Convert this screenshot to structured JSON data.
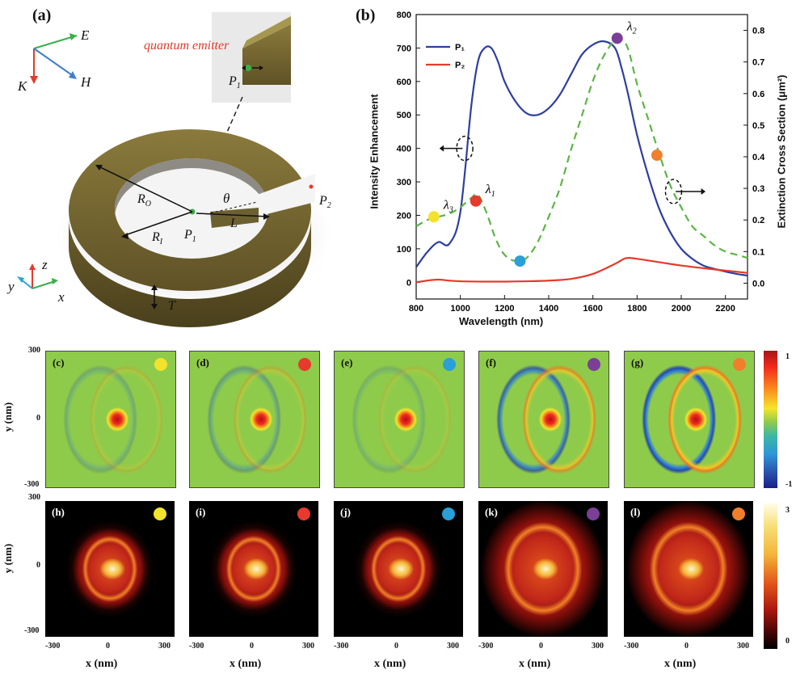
{
  "panel_a": {
    "label": "(a)",
    "axis_E": "E",
    "axis_K": "K",
    "axis_H": "H",
    "emitter_label": "quantum emitter",
    "inset_label": "P",
    "inset_sub": "1",
    "R_o": "R",
    "R_o_sub": "O",
    "R_i": "R",
    "R_i_sub": "I",
    "P1": "P",
    "P1_sub": "1",
    "P2": "P",
    "P2_sub": "2",
    "theta": "θ",
    "L": "L",
    "T": "T",
    "ax_z": "z",
    "ax_y": "y",
    "ax_x": "x"
  },
  "chart_data": {
    "type": "line",
    "panel_label": "(b)",
    "xlabel": "Wavelength (nm)",
    "ylabel_left": "Intensity Enhancement",
    "ylabel_right": "Extinction Cross Section (μm²)",
    "xlim": [
      800,
      2300
    ],
    "ylim_left": [
      -50,
      800
    ],
    "ylim_right": [
      -0.05,
      0.85
    ],
    "x_ticks": [
      "800",
      "1000",
      "1200",
      "1400",
      "1600",
      "1800",
      "2000",
      "2200"
    ],
    "y_left_ticks": [
      "0",
      "100",
      "200",
      "300",
      "400",
      "500",
      "600",
      "700",
      "800"
    ],
    "y_right_ticks": [
      "0.0",
      "0.1",
      "0.2",
      "0.3",
      "0.4",
      "0.5",
      "0.6",
      "0.7",
      "0.8"
    ],
    "legend": [
      "P₁",
      "P₂"
    ],
    "series": [
      {
        "name": "P₁",
        "axis": "left",
        "color": "#2e3f9e",
        "x": [
          800,
          850,
          900,
          950,
          1000,
          1050,
          1080,
          1110,
          1140,
          1170,
          1200,
          1250,
          1300,
          1350,
          1400,
          1450,
          1500,
          1550,
          1600,
          1650,
          1700,
          1730,
          1760,
          1800,
          1850,
          1900,
          1950,
          2000,
          2050,
          2100,
          2150,
          2200,
          2250,
          2300
        ],
        "y": [
          45,
          90,
          120,
          115,
          210,
          530,
          660,
          700,
          700,
          660,
          600,
          540,
          505,
          500,
          520,
          560,
          620,
          680,
          710,
          720,
          700,
          640,
          560,
          440,
          320,
          220,
          150,
          100,
          70,
          50,
          40,
          32,
          25,
          20
        ]
      },
      {
        "name": "P₂",
        "axis": "left",
        "color": "#e53a2c",
        "x": [
          800,
          850,
          900,
          950,
          1000,
          1100,
          1200,
          1300,
          1400,
          1500,
          1600,
          1700,
          1750,
          1800,
          1900,
          2000,
          2100,
          2200,
          2300
        ],
        "y": [
          0,
          5,
          8,
          5,
          3,
          2,
          2,
          3,
          5,
          10,
          25,
          55,
          72,
          70,
          60,
          50,
          42,
          35,
          28
        ]
      },
      {
        "name": "Extinction",
        "axis": "right",
        "color": "#5cb545",
        "dashed": true,
        "x": [
          800,
          850,
          900,
          950,
          1000,
          1050,
          1080,
          1120,
          1160,
          1200,
          1250,
          1300,
          1350,
          1400,
          1450,
          1500,
          1550,
          1600,
          1650,
          1700,
          1730,
          1760,
          1800,
          1850,
          1900,
          1950,
          2000,
          2050,
          2100,
          2150,
          2200,
          2250,
          2300
        ],
        "y": [
          0.18,
          0.2,
          0.21,
          0.22,
          0.24,
          0.27,
          0.28,
          0.22,
          0.14,
          0.09,
          0.07,
          0.08,
          0.13,
          0.21,
          0.3,
          0.42,
          0.53,
          0.64,
          0.72,
          0.77,
          0.77,
          0.74,
          0.63,
          0.52,
          0.41,
          0.31,
          0.24,
          0.18,
          0.15,
          0.12,
          0.1,
          0.09,
          0.08
        ]
      }
    ],
    "markers": [
      {
        "label": "λ",
        "sub": "3",
        "x": 880,
        "y_right": 0.21,
        "color": "#f2e22c"
      },
      {
        "label": "λ",
        "sub": "1",
        "x": 1070,
        "y_right": 0.26,
        "color": "#e53a2c"
      },
      {
        "label": "",
        "sub": "",
        "x": 1270,
        "y_right": 0.07,
        "color": "#2a9fd8"
      },
      {
        "label": "λ",
        "sub": "2",
        "x": 1710,
        "y_right": 0.775,
        "color": "#7b3f98"
      },
      {
        "label": "",
        "sub": "",
        "x": 1890,
        "y_right": 0.405,
        "color": "#f07f2c"
      }
    ]
  },
  "maps": {
    "axis_top_tick": "300",
    "axis_mid_tick": "0",
    "axis_bot_tick": "-300",
    "y_label": "y (nm)",
    "x_label": "x (nm)",
    "x_ticks": [
      "-300",
      "0",
      "300"
    ],
    "cbar_top": {
      "max": "1",
      "min": "-1"
    },
    "cbar_bot": {
      "max": "3",
      "min": "0"
    },
    "top": [
      {
        "label": "(c)",
        "color": "#f2e22c",
        "intensity": 0.25
      },
      {
        "label": "(d)",
        "color": "#e53a2c",
        "intensity": 0.35
      },
      {
        "label": "(e)",
        "color": "#2a9fd8",
        "intensity": 0.2
      },
      {
        "label": "(f)",
        "color": "#7b3f98",
        "intensity": 0.8
      },
      {
        "label": "(g)",
        "color": "#f07f2c",
        "intensity": 1.0
      }
    ],
    "bottom": [
      {
        "label": "(h)",
        "color": "#f2e22c"
      },
      {
        "label": "(i)",
        "color": "#e53a2c"
      },
      {
        "label": "(j)",
        "color": "#2a9fd8"
      },
      {
        "label": "(k)",
        "color": "#7b3f98"
      },
      {
        "label": "(l)",
        "color": "#f07f2c"
      }
    ]
  }
}
